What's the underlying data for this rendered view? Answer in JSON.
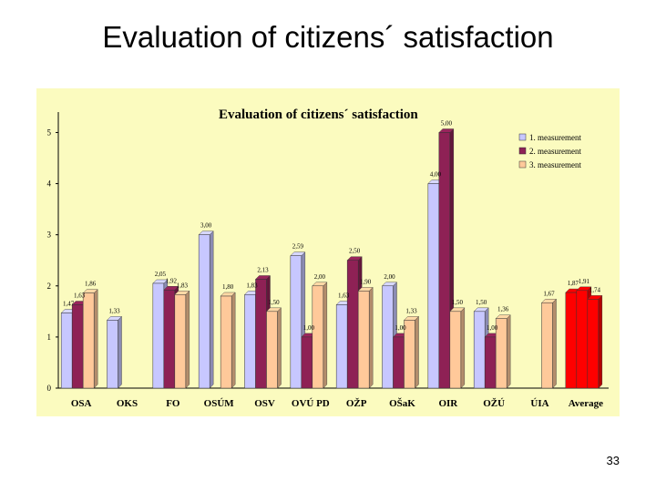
{
  "slide": {
    "title": "Evaluation of citizens´ satisfaction",
    "page_number": "33"
  },
  "colors": {
    "background": "#fbfbbf",
    "series1": "#c7c7ff",
    "series2": "#8e2155",
    "series3": "#ffc99a",
    "average": "#ff0000"
  },
  "chart_data": {
    "type": "bar",
    "title": "Evaluation of citizens´ satisfaction",
    "categories": [
      "OSA",
      "OKS",
      "FO",
      "OSÚM",
      "OSV",
      "OVÚ PD",
      "OŽP",
      "OŠaK",
      "OIR",
      "OŽÚ",
      "ÚIA",
      "Average"
    ],
    "series": [
      {
        "name": "1. measurement",
        "values": [
          1.47,
          1.33,
          2.05,
          3.0,
          1.83,
          2.59,
          1.63,
          2.0,
          4.0,
          1.5,
          null,
          1.87
        ]
      },
      {
        "name": "2. measurement",
        "values": [
          1.63,
          null,
          1.92,
          null,
          2.13,
          1.0,
          2.5,
          1.0,
          5.0,
          1.0,
          null,
          1.91
        ]
      },
      {
        "name": "3. measurement",
        "values": [
          1.86,
          null,
          1.83,
          1.8,
          1.5,
          2.0,
          1.9,
          1.33,
          1.5,
          1.36,
          1.67,
          1.74
        ]
      }
    ],
    "data_labels": [
      [
        "1,47",
        "1,33",
        "2,05",
        "3,00",
        "1,83",
        "2,59",
        "1,63",
        "2,00",
        "4,00",
        "1,50",
        "",
        "1,87"
      ],
      [
        "1,63",
        "",
        "1,92",
        "",
        "2,13",
        "1,00",
        "2,50",
        "1,00",
        "5,00",
        "1,00",
        "",
        "1,91"
      ],
      [
        "1,86",
        "",
        "1,83",
        "1,80",
        "1,50",
        "2,00",
        "1,90",
        "1,33",
        "1,50",
        "1,36",
        "1,67",
        "1,74"
      ]
    ],
    "yticks": [
      "0",
      "1",
      "2",
      "3",
      "4",
      "5"
    ],
    "ylim": [
      0,
      5.4
    ],
    "grid": false,
    "legend_position": "top-right"
  }
}
